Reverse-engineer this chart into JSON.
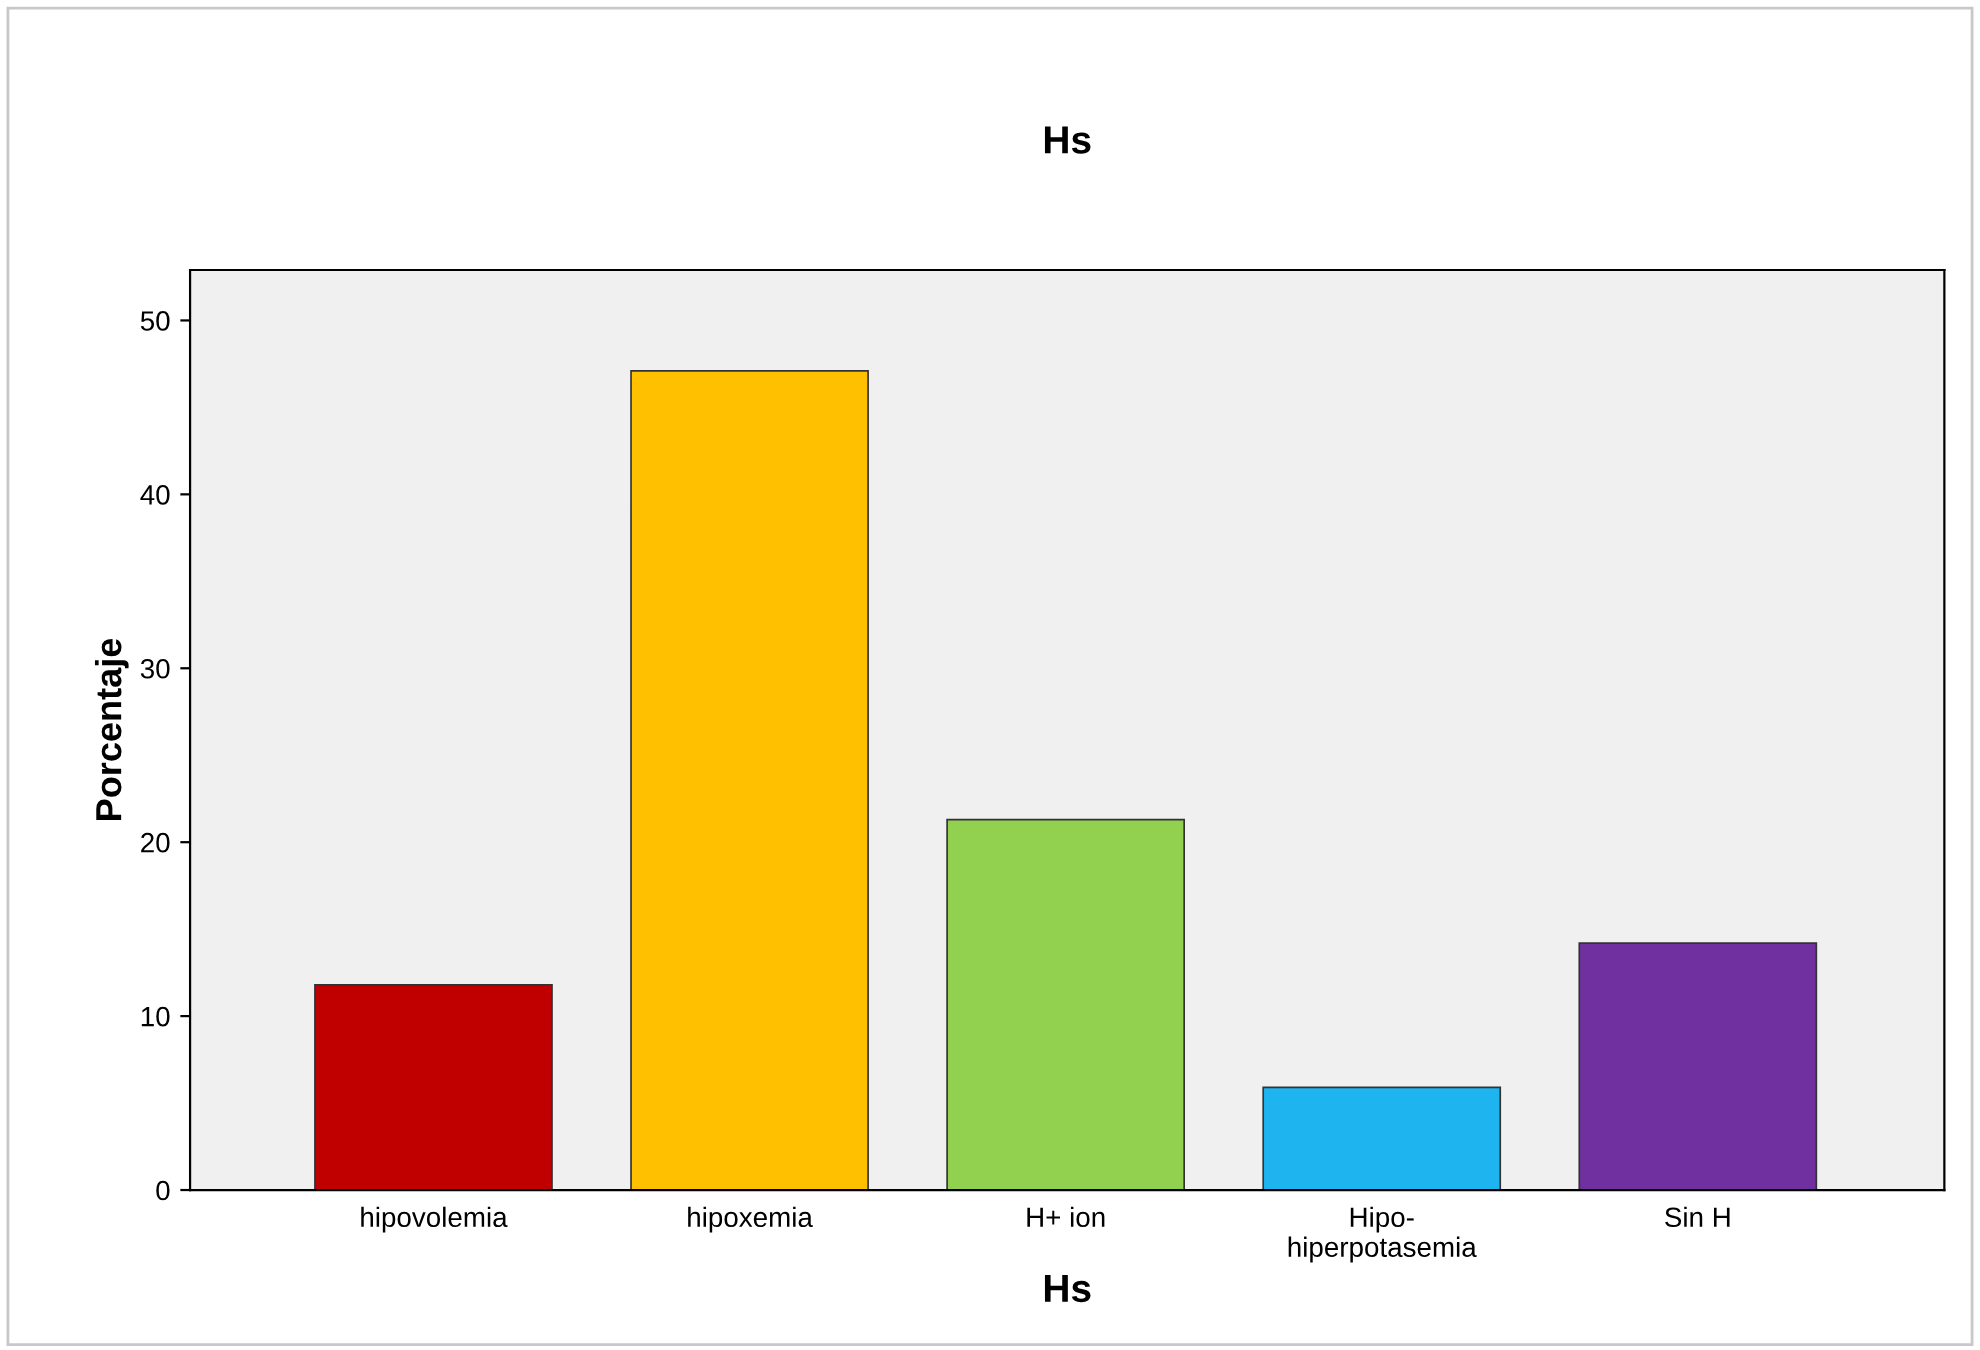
{
  "chart_data": {
    "type": "bar",
    "title": "Hs",
    "xlabel": "Hs",
    "ylabel": "Porcentaje",
    "categories": [
      "hipovolemia",
      "hipoxemia",
      "H+ ion",
      "Hipo-\nhiperpotasemia",
      "Sin H"
    ],
    "values": [
      11.8,
      47.1,
      21.3,
      5.9,
      14.2
    ],
    "colors": [
      "#c00000",
      "#ffc000",
      "#92d050",
      "#1eb4f0",
      "#7030a0"
    ],
    "ylim": [
      0,
      52.9
    ],
    "yticks": [
      0,
      10,
      20,
      30,
      40,
      50
    ],
    "grid": false,
    "legend": false
  }
}
